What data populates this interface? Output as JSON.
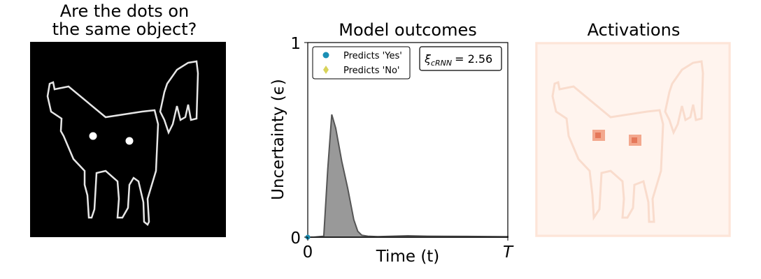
{
  "panels": {
    "stimulus_title": "Are the dots on\nthe same object?",
    "activations_title": "Activations"
  },
  "colors": {
    "yes_marker": "#1b8fb5",
    "no_marker": "#d8d35a",
    "area_fill": "#999999",
    "area_edge": "#555555",
    "activation_bg": "#fff4ee",
    "activation_hot": "#e5785a"
  },
  "chart_data": {
    "type": "area",
    "title": "Model outcomes",
    "xlabel": "Time (t)",
    "ylabel": "Uncertainty (ϵ)",
    "xlim": [
      0,
      1
    ],
    "ylim": [
      0,
      1
    ],
    "x_tick_labels": [
      "0",
      "T"
    ],
    "y_tick_labels": [
      "0",
      "1"
    ],
    "legend": [
      {
        "label": "Predicts 'Yes'",
        "marker": "circle"
      },
      {
        "label": "Predicts 'No'",
        "marker": "diamond"
      }
    ],
    "legend_position": "top-left",
    "annotation": {
      "symbol": "ξ",
      "subscript": "cRNN",
      "value": "= 2.56"
    },
    "series": [
      {
        "x": [
          0,
          0.03,
          0.08,
          0.1,
          0.12,
          0.14,
          0.17,
          0.2,
          0.23,
          0.25,
          0.27,
          0.3,
          0.35,
          0.5,
          0.6,
          0.8,
          1.0
        ],
        "y": [
          0,
          0,
          0.005,
          0.35,
          0.63,
          0.56,
          0.39,
          0.25,
          0.09,
          0.03,
          0.01,
          0.005,
          0.003,
          0.007,
          0.005,
          0.004,
          0.002
        ]
      }
    ],
    "yes_marker_point": {
      "x": 0,
      "y": 0
    }
  }
}
